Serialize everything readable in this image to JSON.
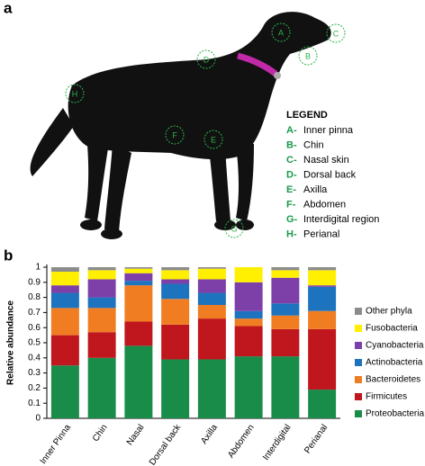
{
  "dog_figure": {
    "panel_label": "a",
    "legend_title": "LEGEND",
    "legend": [
      {
        "key": "A-",
        "label": "Inner pinna"
      },
      {
        "key": "B-",
        "label": "Chin"
      },
      {
        "key": "C-",
        "label": "Nasal skin"
      },
      {
        "key": "D-",
        "label": "Dorsal back"
      },
      {
        "key": "E-",
        "label": "Axilla"
      },
      {
        "key": "F-",
        "label": "Abdomen"
      },
      {
        "key": "G-",
        "label": "Interdigital region"
      },
      {
        "key": "H-",
        "label": "Perianal"
      }
    ],
    "sites": [
      "A",
      "B",
      "C",
      "D",
      "E",
      "F",
      "G",
      "H"
    ]
  },
  "chart_data": {
    "type": "stacked_bar",
    "panel_label": "b",
    "y_label": "Relative abundance",
    "categories": [
      "Inner Pinna",
      "Chin",
      "Nasal",
      "Dorsal back",
      "Axilla",
      "Abdomen",
      "Interdigital",
      "Perianal"
    ],
    "series": [
      {
        "name": "Proteobacteria",
        "color": "#1a8c4a",
        "values": [
          0.35,
          0.4,
          0.48,
          0.39,
          0.39,
          0.41,
          0.41,
          0.19
        ]
      },
      {
        "name": "Firmicutes",
        "color": "#c0161d",
        "values": [
          0.2,
          0.17,
          0.16,
          0.23,
          0.27,
          0.2,
          0.18,
          0.4
        ]
      },
      {
        "name": "Bacteroidetes",
        "color": "#f07d22",
        "values": [
          0.18,
          0.16,
          0.24,
          0.17,
          0.09,
          0.05,
          0.09,
          0.12
        ]
      },
      {
        "name": "Actinobacteria",
        "color": "#1e73be",
        "values": [
          0.1,
          0.07,
          0.03,
          0.1,
          0.08,
          0.05,
          0.08,
          0.16
        ]
      },
      {
        "name": "Cyanobacteria",
        "color": "#7d3fa8",
        "values": [
          0.05,
          0.12,
          0.05,
          0.03,
          0.09,
          0.19,
          0.17,
          0.01
        ]
      },
      {
        "name": "Fusobacteria",
        "color": "#ffef00",
        "values": [
          0.09,
          0.06,
          0.03,
          0.06,
          0.07,
          0.1,
          0.05,
          0.1
        ]
      },
      {
        "name": "Other phyla",
        "color": "#8c8c8c",
        "values": [
          0.03,
          0.02,
          0.01,
          0.02,
          0.01,
          0.0,
          0.02,
          0.02
        ]
      }
    ],
    "ylim": [
      0,
      1
    ],
    "yticks": [
      0,
      0.1,
      0.2,
      0.3,
      0.4,
      0.5,
      0.6,
      0.7,
      0.8,
      0.9,
      1
    ],
    "grid": false,
    "legend": "right"
  }
}
